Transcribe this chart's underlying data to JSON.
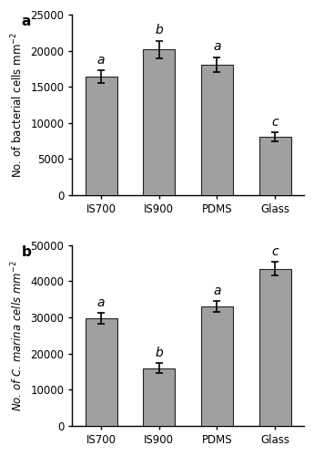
{
  "subplot_a": {
    "label": "a",
    "categories": [
      "IS700",
      "IS900",
      "PDMS",
      "Glass"
    ],
    "values": [
      16400,
      20200,
      18100,
      8100
    ],
    "errors": [
      900,
      1200,
      1000,
      600
    ],
    "sig_letters": [
      "a",
      "b",
      "a",
      "c"
    ],
    "ylim": [
      0,
      25000
    ],
    "yticks": [
      0,
      5000,
      10000,
      15000,
      20000,
      25000
    ]
  },
  "subplot_b": {
    "label": "b",
    "categories": [
      "IS700",
      "IS900",
      "PDMS",
      "Glass"
    ],
    "values": [
      29800,
      16000,
      33000,
      43500
    ],
    "errors": [
      1500,
      1400,
      1500,
      1800
    ],
    "sig_letters": [
      "a",
      "b",
      "a",
      "c"
    ],
    "ylim": [
      0,
      50000
    ],
    "yticks": [
      0,
      10000,
      20000,
      30000,
      40000,
      50000
    ]
  },
  "bar_color": "#a0a0a0",
  "bar_edgecolor": "#222222",
  "bar_width": 0.55,
  "capsize": 3,
  "error_linewidth": 1.2,
  "letter_fontsize": 10,
  "tick_fontsize": 8.5,
  "ylabel_fontsize": 8.5,
  "label_fontsize": 11,
  "background_color": "#ffffff"
}
